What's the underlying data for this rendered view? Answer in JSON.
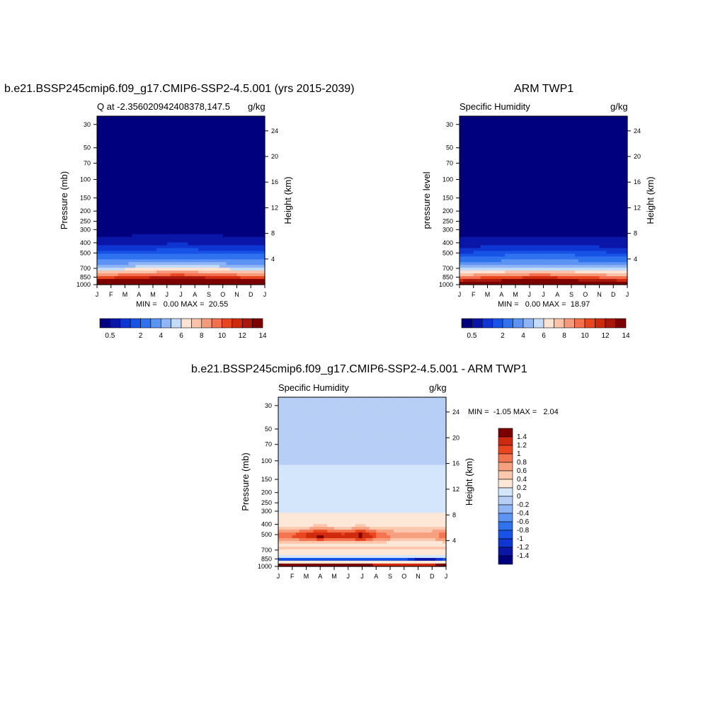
{
  "chart_data": [
    {
      "type": "contour",
      "title": "b.e21.BSSP245cmip6.f09_g17.CMIP6-SSP2-4.5.001 (yrs 2015-2039)",
      "left_subtitle": "Q at -2.356020942408378,147.5",
      "right_subtitle": "g/kg",
      "ylabel": "Pressure (mb)",
      "y2label": "Height (km)",
      "x_ticks": [
        "J",
        "F",
        "M",
        "A",
        "M",
        "J",
        "J",
        "A",
        "S",
        "O",
        "N",
        "D",
        "J"
      ],
      "y_ticks": [
        "30",
        "50",
        "70",
        "100",
        "150",
        "200",
        "250",
        "300",
        "400",
        "500",
        "700",
        "850",
        "1000"
      ],
      "y2_ticks": [
        "24",
        "20",
        "16",
        "12",
        "8",
        "4"
      ],
      "stats": "MIN =   0.00 MAX =  20.55",
      "min": 0.0,
      "max": 20.55,
      "colorbar_labels": [
        "0.5",
        "2",
        "4",
        "6",
        "8",
        "10",
        "12",
        "14"
      ],
      "colorbar_levels": [
        0.5,
        1,
        1.5,
        2,
        3,
        4,
        5,
        6,
        7,
        8,
        9,
        10,
        11,
        12,
        13,
        14
      ],
      "ylim": [
        1000,
        25
      ]
    },
    {
      "type": "contour",
      "title": "ARM TWP1",
      "left_subtitle": "Specific Humidity",
      "right_subtitle": "g/kg",
      "ylabel": "pressure level",
      "y2label": "Height (km)",
      "x_ticks": [
        "J",
        "F",
        "M",
        "A",
        "M",
        "J",
        "J",
        "A",
        "S",
        "O",
        "N",
        "D",
        "J"
      ],
      "y_ticks": [
        "30",
        "50",
        "70",
        "100",
        "150",
        "200",
        "250",
        "300",
        "400",
        "500",
        "700",
        "850",
        "1000"
      ],
      "y2_ticks": [
        "24",
        "20",
        "16",
        "12",
        "8",
        "4"
      ],
      "stats": "MIN =   0.00 MAX =  18.97",
      "min": 0.0,
      "max": 18.97,
      "colorbar_labels": [
        "0.5",
        "2",
        "4",
        "6",
        "8",
        "10",
        "12",
        "14"
      ],
      "colorbar_levels": [
        0.5,
        1,
        1.5,
        2,
        3,
        4,
        5,
        6,
        7,
        8,
        9,
        10,
        11,
        12,
        13,
        14
      ],
      "ylim": [
        1000,
        25
      ]
    },
    {
      "type": "contour",
      "title": "b.e21.BSSP245cmip6.f09_g17.CMIP6-SSP2-4.5.001 - ARM TWP1",
      "left_subtitle": "Specific Humidity",
      "right_subtitle": "g/kg",
      "ylabel": "Pressure (mb)",
      "y2label": "Height (km)",
      "x_ticks": [
        "J",
        "F",
        "M",
        "A",
        "M",
        "J",
        "J",
        "A",
        "S",
        "O",
        "N",
        "D",
        "J"
      ],
      "y_ticks": [
        "30",
        "50",
        "70",
        "100",
        "150",
        "200",
        "250",
        "300",
        "400",
        "500",
        "700",
        "850",
        "1000"
      ],
      "y2_ticks": [
        "24",
        "20",
        "16",
        "12",
        "8",
        "4"
      ],
      "stats": "MIN =  -1.05 MAX =   2.04",
      "min": -1.05,
      "max": 2.04,
      "colorbar_labels": [
        "1.4",
        "1.2",
        "1",
        "0.8",
        "0.6",
        "0.4",
        "0.2",
        "0",
        "-0.2",
        "-0.4",
        "-0.6",
        "-0.8",
        "-1",
        "-1.2",
        "-1.4"
      ],
      "colorbar_levels": [
        -1.4,
        -1.2,
        -1,
        -0.8,
        -0.6,
        -0.4,
        -0.2,
        0,
        0.2,
        0.4,
        0.6,
        0.8,
        1,
        1.2,
        1.4
      ],
      "ylim": [
        1000,
        25
      ]
    }
  ],
  "colors": {
    "seq": [
      "#00007f",
      "#0a16a8",
      "#0f35d2",
      "#1753e6",
      "#2e72f0",
      "#5d93f3",
      "#8fb5f5",
      "#c4dcfa",
      "#fde3d3",
      "#fbc2a7",
      "#f79a7b",
      "#f36f4e",
      "#e9461f",
      "#cf2a0d",
      "#a9170a",
      "#7c0000"
    ],
    "div": [
      "#00007f",
      "#0a16a8",
      "#0f35d2",
      "#1753e6",
      "#2e72f0",
      "#5d93f3",
      "#8fb5f5",
      "#b7cef5",
      "#d4e6fb",
      "#fde8d8",
      "#fbc8ae",
      "#f7a07f",
      "#f3744f",
      "#e9461f",
      "#cf2a0d",
      "#7c0000"
    ]
  }
}
